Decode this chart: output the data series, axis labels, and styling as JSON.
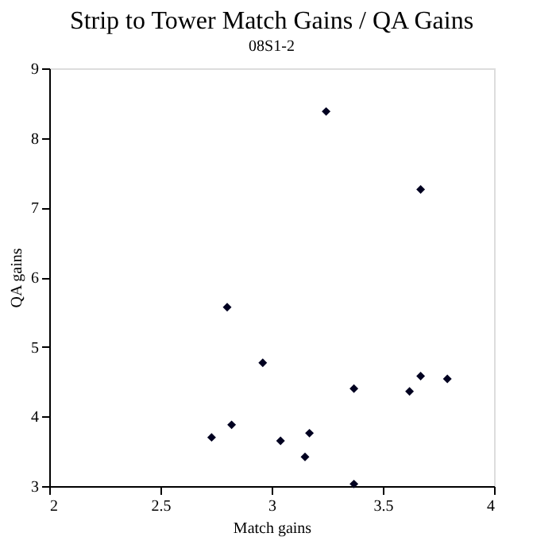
{
  "chart_data": {
    "type": "scatter",
    "title": "Strip to Tower Match Gains / QA Gains",
    "subtitle": "08S1-2",
    "xlabel": "Match gains",
    "ylabel": "QA gains",
    "x": [
      3.245,
      3.67,
      2.8,
      2.96,
      3.37,
      3.67,
      3.62,
      3.79,
      2.82,
      2.73,
      3.04,
      3.17,
      3.15,
      3.37
    ],
    "series": [
      {
        "color": "#000020",
        "values": [
          8.38,
          7.26,
          5.57,
          4.77,
          4.4,
          4.58,
          4.36,
          4.54,
          3.88,
          3.7,
          3.65,
          3.76,
          3.42,
          3.03
        ]
      }
    ],
    "xlim": [
      2,
      4
    ],
    "xticks": [
      2,
      2.5,
      3,
      3.5,
      4
    ],
    "ylim": [
      3,
      9
    ],
    "yticks": [
      3,
      4,
      5,
      6,
      7,
      8,
      9
    ],
    "grid": false,
    "legend": false,
    "marker": "diamond"
  }
}
